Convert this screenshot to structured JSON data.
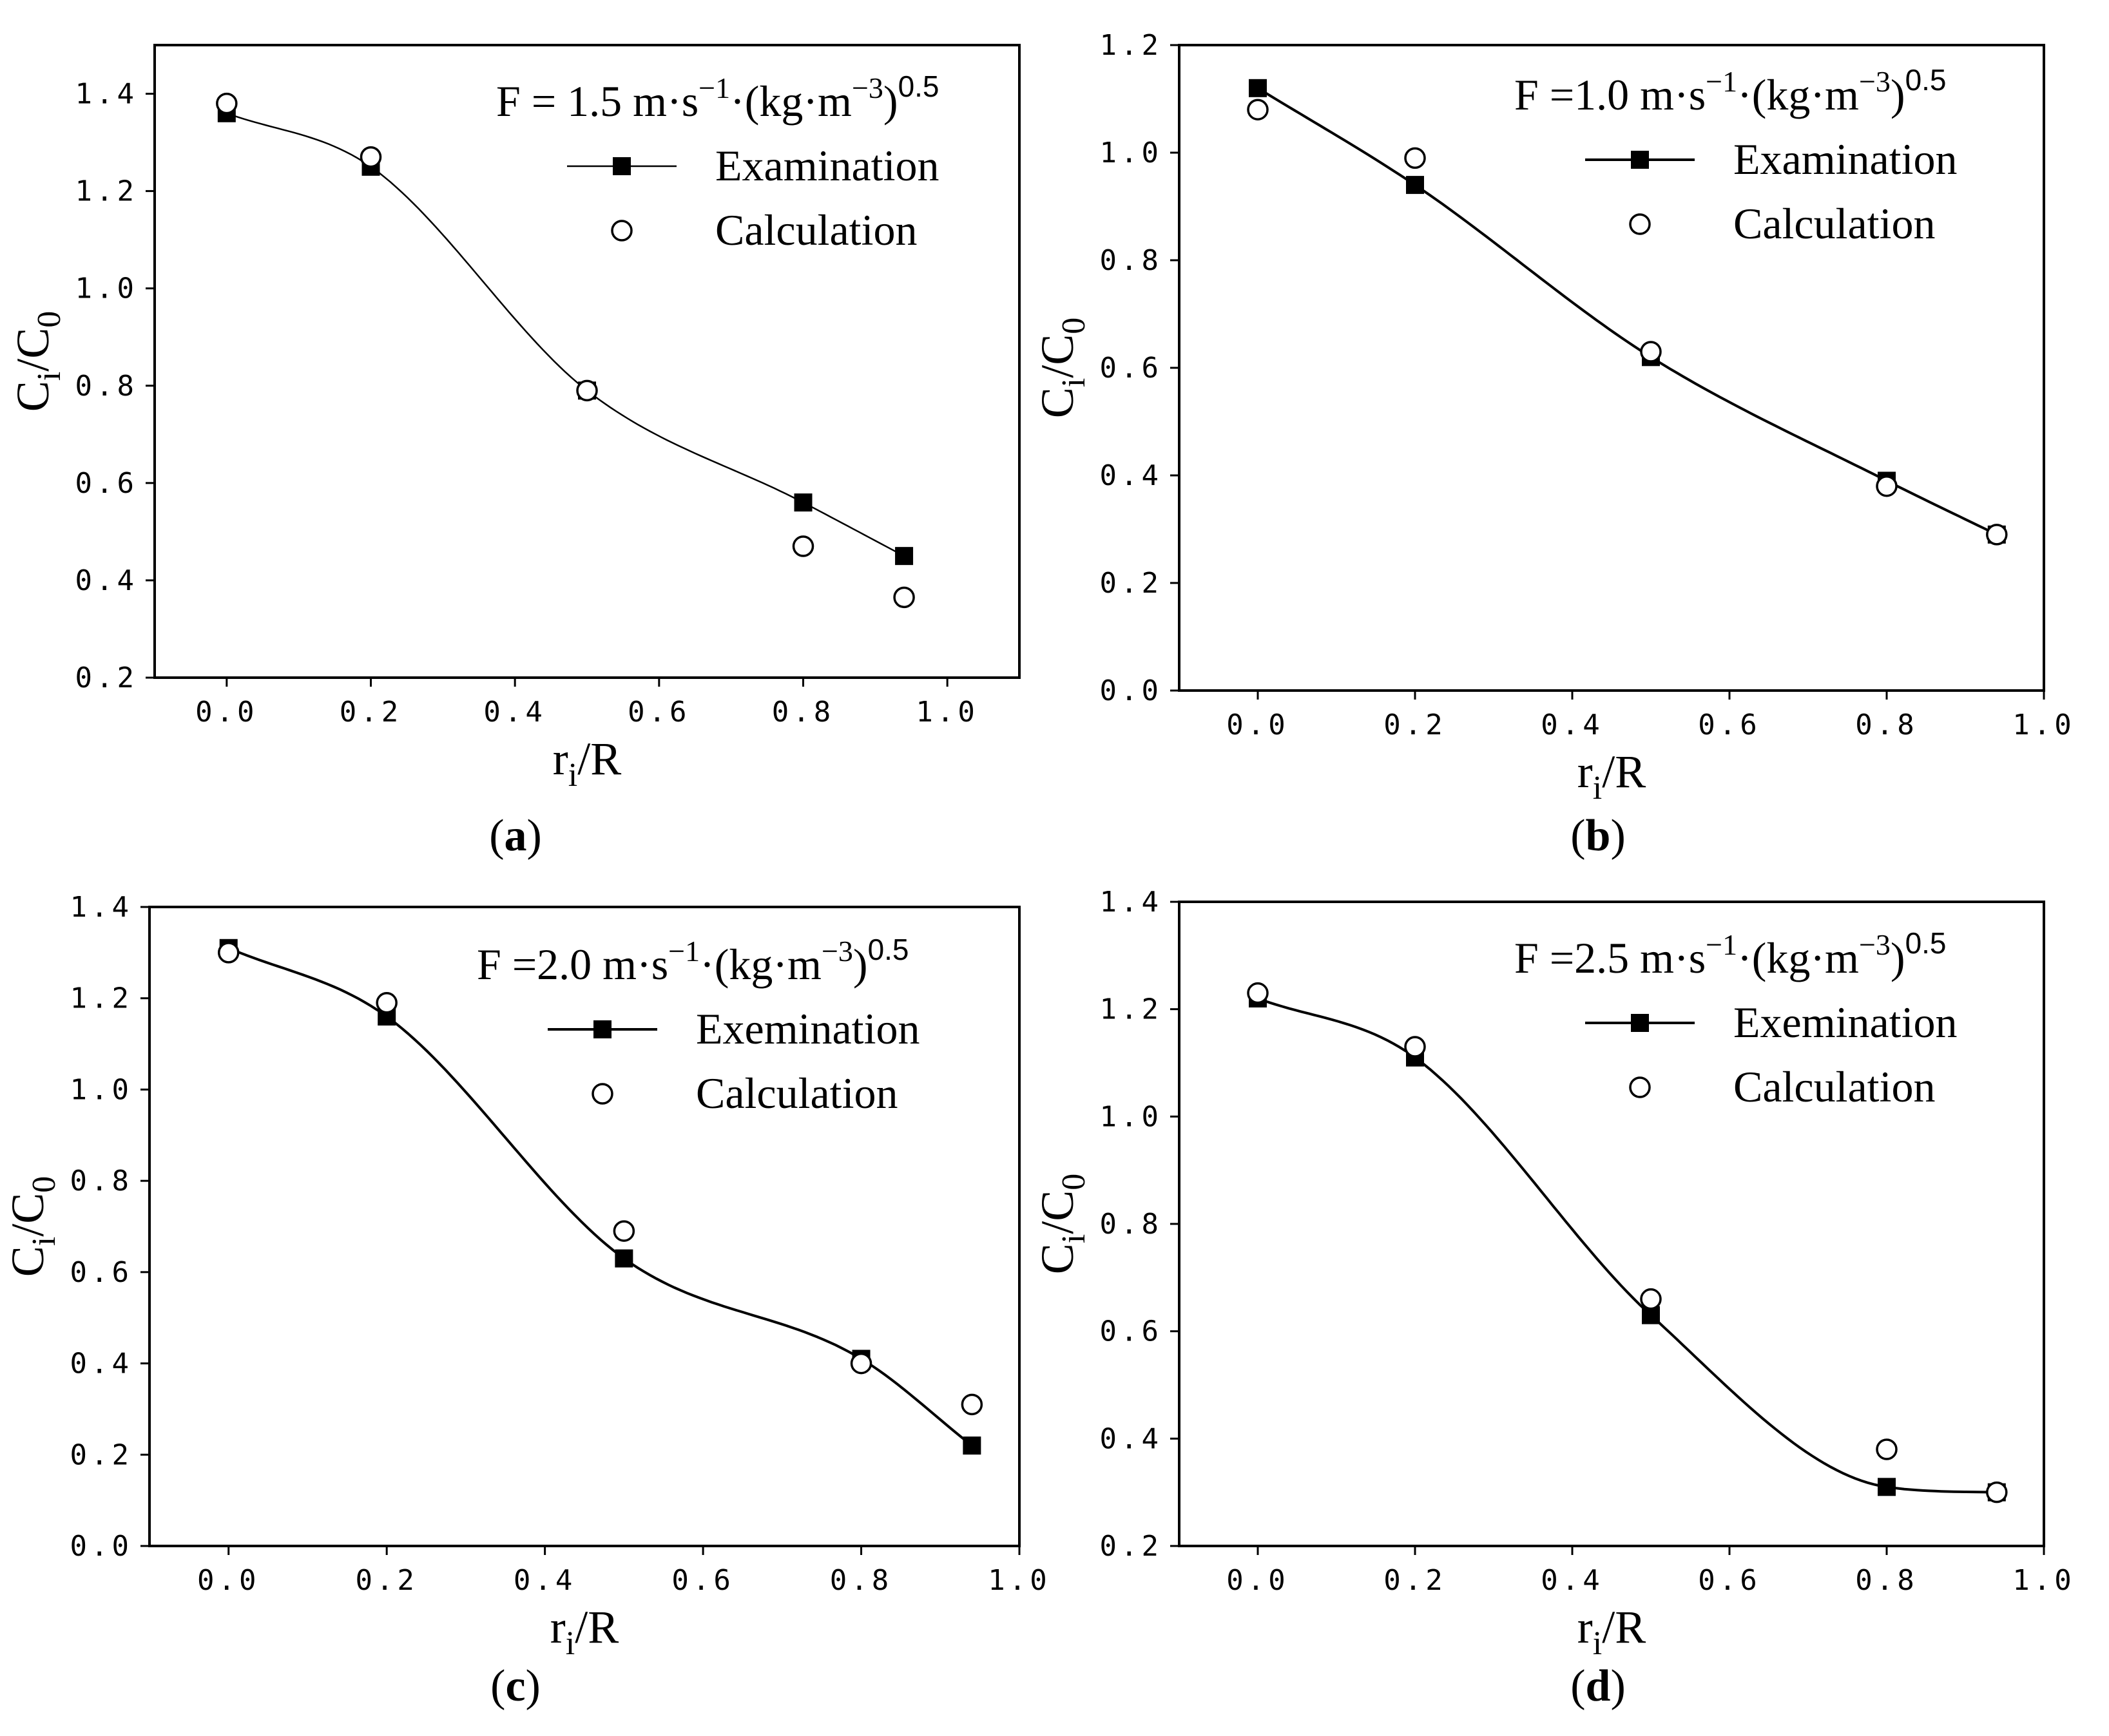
{
  "figure": {
    "panels": [
      {
        "id": "a",
        "label": "(a)",
        "label_bold": "a",
        "title_prefix": "F = 1.5 m·s",
        "title_mid": "·(kg·m",
        "title_suffix": ")",
        "legend_exam": "Examination",
        "legend_calc": "Calculation"
      },
      {
        "id": "b",
        "label": "(b)",
        "label_bold": "b",
        "title_prefix": "F =1.0 m·s",
        "title_mid": "·(kg·m",
        "title_suffix": ")",
        "legend_exam": "Examination",
        "legend_calc": "Calculation"
      },
      {
        "id": "c",
        "label": "(c)",
        "label_bold": "c",
        "title_prefix": "F =2.0 m·s",
        "title_mid": "·(kg·m",
        "title_suffix": ")",
        "legend_exam": "Exemination",
        "legend_calc": "Calculation"
      },
      {
        "id": "d",
        "label": "(d)",
        "label_bold": "d",
        "title_prefix": "F =2.5 m·s",
        "title_mid": "·(kg·m",
        "title_suffix": ")",
        "legend_exam": "Exemination",
        "legend_calc": "Calculation"
      }
    ],
    "sup_minus1": "−1",
    "sup_minus3": "−3",
    "sup_half": "0.5",
    "ylabel_main": "C",
    "ylabel_sub1": "i",
    "ylabel_slash": "/C",
    "ylabel_sub2": "0",
    "xlabel_main": "r",
    "xlabel_sub": "i",
    "xlabel_rest": "/R"
  },
  "chart_data": [
    {
      "type": "scatter",
      "panel": "a",
      "title": "F = 1.5 m·s−1·(kg·m−3)0.5",
      "xlabel": "ri/R",
      "ylabel": "Ci/C0",
      "xlim": [
        -0.1,
        1.1
      ],
      "ylim": [
        0.2,
        1.5
      ],
      "x_ticks": [
        "0.0",
        "0.2",
        "0.4",
        "0.6",
        "0.8",
        "1.0"
      ],
      "y_ticks": [
        "0.2",
        "0.4",
        "0.6",
        "0.8",
        "1.0",
        "1.2",
        "1.4"
      ],
      "legend_position": "top-right",
      "series": [
        {
          "name": "Examination",
          "marker": "filled-square",
          "line": true,
          "x": [
            0.0,
            0.2,
            0.5,
            0.8,
            0.94
          ],
          "y": [
            1.36,
            1.25,
            0.79,
            0.56,
            0.45
          ]
        },
        {
          "name": "Calculation",
          "marker": "open-circle",
          "line": false,
          "x": [
            0.0,
            0.2,
            0.5,
            0.8,
            0.94
          ],
          "y": [
            1.38,
            1.27,
            0.79,
            0.47,
            0.365
          ]
        }
      ]
    },
    {
      "type": "scatter",
      "panel": "b",
      "title": "F =1.0 m·s−1·(kg·m−3)0.5",
      "xlabel": "ri/R",
      "ylabel": "Ci/C0",
      "xlim": [
        -0.1,
        1.0
      ],
      "ylim": [
        0.0,
        1.2
      ],
      "x_ticks": [
        "0.0",
        "0.2",
        "0.4",
        "0.6",
        "0.8",
        "1.0"
      ],
      "y_ticks": [
        "0.0",
        "0.2",
        "0.4",
        "0.6",
        "0.8",
        "1.0",
        "1.2"
      ],
      "legend_position": "top-right",
      "series": [
        {
          "name": "Examination",
          "marker": "filled-square",
          "line": true,
          "x": [
            0.0,
            0.2,
            0.5,
            0.8,
            0.94
          ],
          "y": [
            1.12,
            0.94,
            0.62,
            0.39,
            0.29
          ]
        },
        {
          "name": "Calculation",
          "marker": "open-circle",
          "line": false,
          "x": [
            0.0,
            0.2,
            0.5,
            0.8,
            0.94
          ],
          "y": [
            1.08,
            0.99,
            0.63,
            0.38,
            0.29
          ]
        }
      ]
    },
    {
      "type": "scatter",
      "panel": "c",
      "title": "F =2.0 m·s−1·(kg·m−3)0.5",
      "xlabel": "ri/R",
      "ylabel": "Ci/C0",
      "xlim": [
        -0.1,
        1.0
      ],
      "ylim": [
        0.0,
        1.4
      ],
      "x_ticks": [
        "0.0",
        "0.2",
        "0.4",
        "0.6",
        "0.8",
        "1.0"
      ],
      "y_ticks": [
        "0.0",
        "0.2",
        "0.4",
        "0.6",
        "0.8",
        "1.0",
        "1.2",
        "1.4"
      ],
      "legend_position": "top-right",
      "series": [
        {
          "name": "Exemination",
          "marker": "filled-square",
          "line": true,
          "x": [
            0.0,
            0.2,
            0.5,
            0.8,
            0.94
          ],
          "y": [
            1.31,
            1.16,
            0.63,
            0.41,
            0.22
          ]
        },
        {
          "name": "Calculation",
          "marker": "open-circle",
          "line": false,
          "x": [
            0.0,
            0.2,
            0.5,
            0.8,
            0.94
          ],
          "y": [
            1.3,
            1.19,
            0.69,
            0.4,
            0.31
          ]
        }
      ]
    },
    {
      "type": "scatter",
      "panel": "d",
      "title": "F =2.5 m·s−1·(kg·m−3)0.5",
      "xlabel": "ri/R",
      "ylabel": "Ci/C0",
      "xlim": [
        -0.1,
        1.0
      ],
      "ylim": [
        0.2,
        1.4
      ],
      "x_ticks": [
        "0.0",
        "0.2",
        "0.4",
        "0.6",
        "0.8",
        "1.0"
      ],
      "y_ticks": [
        "0.2",
        "0.4",
        "0.6",
        "0.8",
        "1.0",
        "1.2",
        "1.4"
      ],
      "legend_position": "top-right",
      "series": [
        {
          "name": "Exemination",
          "marker": "filled-square",
          "line": true,
          "x": [
            0.0,
            0.2,
            0.5,
            0.8,
            0.94
          ],
          "y": [
            1.22,
            1.11,
            0.63,
            0.31,
            0.3
          ]
        },
        {
          "name": "Calculation",
          "marker": "open-circle",
          "line": false,
          "x": [
            0.0,
            0.2,
            0.5,
            0.8,
            0.94
          ],
          "y": [
            1.23,
            1.13,
            0.66,
            0.38,
            0.3
          ]
        }
      ]
    }
  ]
}
